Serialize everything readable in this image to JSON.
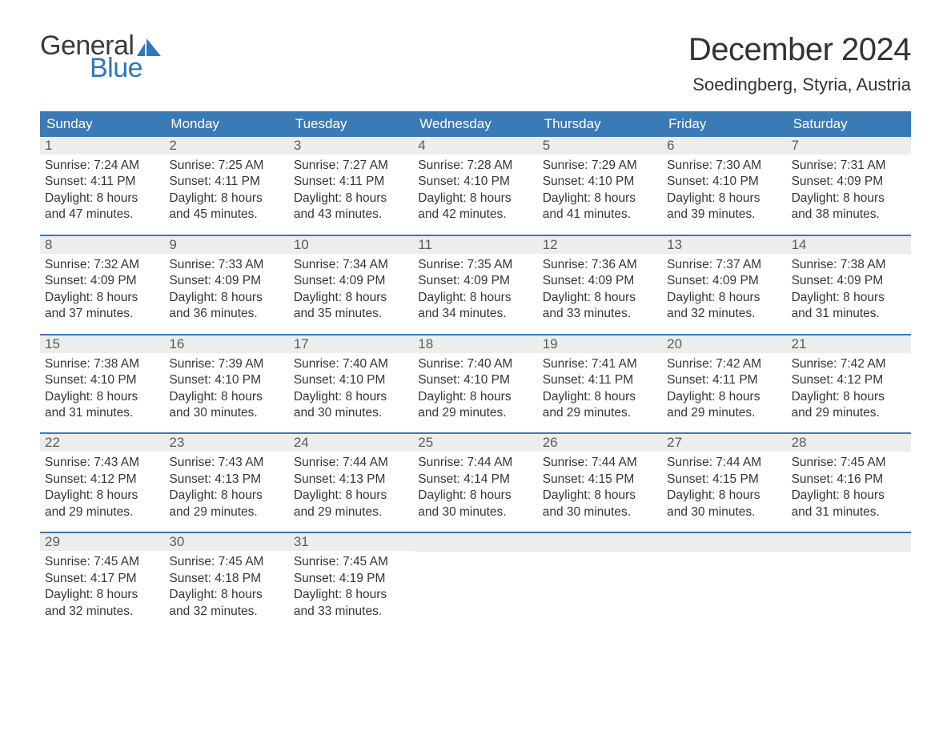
{
  "brand": {
    "text_general": "General",
    "text_blue": "Blue",
    "logo_color": "#2f77b7",
    "logo_dark": "#3a3a3a"
  },
  "title": "December 2024",
  "location": "Soedingberg, Styria, Austria",
  "colors": {
    "header_bg": "#3a7ab5",
    "header_text": "#ffffff",
    "daynum_bg": "#eceded",
    "daynum_text": "#5b5b5b",
    "body_text": "#363636",
    "rule": "#3a7ab5",
    "page_bg": "#ffffff"
  },
  "day_names": [
    "Sunday",
    "Monday",
    "Tuesday",
    "Wednesday",
    "Thursday",
    "Friday",
    "Saturday"
  ],
  "weeks": [
    [
      {
        "n": "1",
        "sr": "7:24 AM",
        "ss": "4:11 PM",
        "dl": "8 hours and 47 minutes."
      },
      {
        "n": "2",
        "sr": "7:25 AM",
        "ss": "4:11 PM",
        "dl": "8 hours and 45 minutes."
      },
      {
        "n": "3",
        "sr": "7:27 AM",
        "ss": "4:11 PM",
        "dl": "8 hours and 43 minutes."
      },
      {
        "n": "4",
        "sr": "7:28 AM",
        "ss": "4:10 PM",
        "dl": "8 hours and 42 minutes."
      },
      {
        "n": "5",
        "sr": "7:29 AM",
        "ss": "4:10 PM",
        "dl": "8 hours and 41 minutes."
      },
      {
        "n": "6",
        "sr": "7:30 AM",
        "ss": "4:10 PM",
        "dl": "8 hours and 39 minutes."
      },
      {
        "n": "7",
        "sr": "7:31 AM",
        "ss": "4:09 PM",
        "dl": "8 hours and 38 minutes."
      }
    ],
    [
      {
        "n": "8",
        "sr": "7:32 AM",
        "ss": "4:09 PM",
        "dl": "8 hours and 37 minutes."
      },
      {
        "n": "9",
        "sr": "7:33 AM",
        "ss": "4:09 PM",
        "dl": "8 hours and 36 minutes."
      },
      {
        "n": "10",
        "sr": "7:34 AM",
        "ss": "4:09 PM",
        "dl": "8 hours and 35 minutes."
      },
      {
        "n": "11",
        "sr": "7:35 AM",
        "ss": "4:09 PM",
        "dl": "8 hours and 34 minutes."
      },
      {
        "n": "12",
        "sr": "7:36 AM",
        "ss": "4:09 PM",
        "dl": "8 hours and 33 minutes."
      },
      {
        "n": "13",
        "sr": "7:37 AM",
        "ss": "4:09 PM",
        "dl": "8 hours and 32 minutes."
      },
      {
        "n": "14",
        "sr": "7:38 AM",
        "ss": "4:09 PM",
        "dl": "8 hours and 31 minutes."
      }
    ],
    [
      {
        "n": "15",
        "sr": "7:38 AM",
        "ss": "4:10 PM",
        "dl": "8 hours and 31 minutes."
      },
      {
        "n": "16",
        "sr": "7:39 AM",
        "ss": "4:10 PM",
        "dl": "8 hours and 30 minutes."
      },
      {
        "n": "17",
        "sr": "7:40 AM",
        "ss": "4:10 PM",
        "dl": "8 hours and 30 minutes."
      },
      {
        "n": "18",
        "sr": "7:40 AM",
        "ss": "4:10 PM",
        "dl": "8 hours and 29 minutes."
      },
      {
        "n": "19",
        "sr": "7:41 AM",
        "ss": "4:11 PM",
        "dl": "8 hours and 29 minutes."
      },
      {
        "n": "20",
        "sr": "7:42 AM",
        "ss": "4:11 PM",
        "dl": "8 hours and 29 minutes."
      },
      {
        "n": "21",
        "sr": "7:42 AM",
        "ss": "4:12 PM",
        "dl": "8 hours and 29 minutes."
      }
    ],
    [
      {
        "n": "22",
        "sr": "7:43 AM",
        "ss": "4:12 PM",
        "dl": "8 hours and 29 minutes."
      },
      {
        "n": "23",
        "sr": "7:43 AM",
        "ss": "4:13 PM",
        "dl": "8 hours and 29 minutes."
      },
      {
        "n": "24",
        "sr": "7:44 AM",
        "ss": "4:13 PM",
        "dl": "8 hours and 29 minutes."
      },
      {
        "n": "25",
        "sr": "7:44 AM",
        "ss": "4:14 PM",
        "dl": "8 hours and 30 minutes."
      },
      {
        "n": "26",
        "sr": "7:44 AM",
        "ss": "4:15 PM",
        "dl": "8 hours and 30 minutes."
      },
      {
        "n": "27",
        "sr": "7:44 AM",
        "ss": "4:15 PM",
        "dl": "8 hours and 30 minutes."
      },
      {
        "n": "28",
        "sr": "7:45 AM",
        "ss": "4:16 PM",
        "dl": "8 hours and 31 minutes."
      }
    ],
    [
      {
        "n": "29",
        "sr": "7:45 AM",
        "ss": "4:17 PM",
        "dl": "8 hours and 32 minutes."
      },
      {
        "n": "30",
        "sr": "7:45 AM",
        "ss": "4:18 PM",
        "dl": "8 hours and 32 minutes."
      },
      {
        "n": "31",
        "sr": "7:45 AM",
        "ss": "4:19 PM",
        "dl": "8 hours and 33 minutes."
      },
      null,
      null,
      null,
      null
    ]
  ],
  "labels": {
    "sunrise": "Sunrise: ",
    "sunset": "Sunset: ",
    "daylight": "Daylight: "
  }
}
